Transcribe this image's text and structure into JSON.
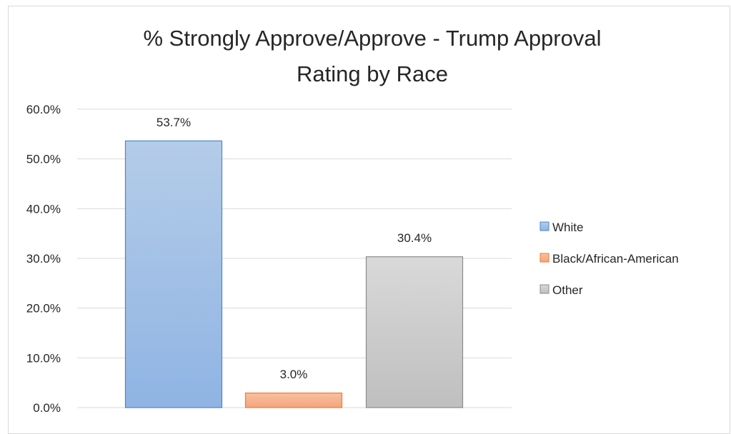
{
  "chart_data": {
    "type": "bar",
    "title": "% Strongly Approve/Approve - Trump Approval Rating by Race",
    "title_lines": [
      "% Strongly Approve/Approve - Trump Approval",
      "Rating by Race"
    ],
    "categories": [
      "White",
      "Black/African-American",
      "Other"
    ],
    "values": [
      53.7,
      3.0,
      30.4
    ],
    "data_labels": [
      "53.7%",
      "3.0%",
      "30.4%"
    ],
    "y_ticks": [
      0,
      10,
      20,
      30,
      40,
      50,
      60
    ],
    "y_tick_labels": [
      "0.0%",
      "10.0%",
      "20.0%",
      "30.0%",
      "40.0%",
      "50.0%",
      "60.0%"
    ],
    "ylim": [
      0,
      60
    ],
    "xlabel": "",
    "ylabel": "",
    "grid": true,
    "legend": {
      "placement": "right",
      "entries": [
        "White",
        "Black/African-American",
        "Other"
      ]
    },
    "colors": {
      "White": {
        "fill_top": "#b4cce9",
        "fill_bottom": "#8fb4e3",
        "stroke": "#4f86c6"
      },
      "Black/African-American": {
        "fill_top": "#f8c0a0",
        "fill_bottom": "#f4a47c",
        "stroke": "#ed7d31"
      },
      "Other": {
        "fill_top": "#d9d9d9",
        "fill_bottom": "#bfbfbf",
        "stroke": "#8c8c8c"
      }
    }
  }
}
